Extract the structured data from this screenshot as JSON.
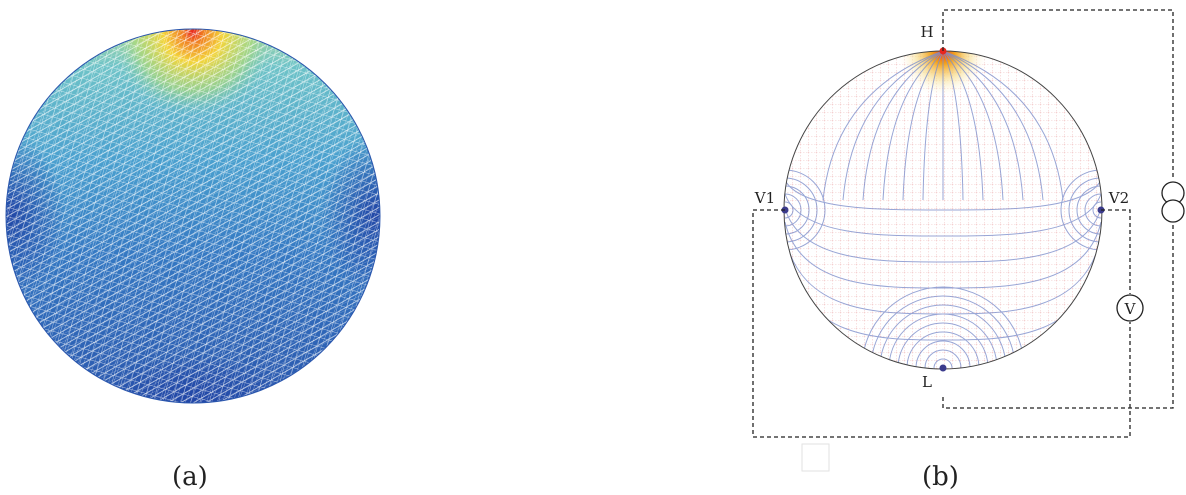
{
  "panels": [
    {
      "caption": "(a)",
      "colors": {
        "hot": "#e8261e",
        "warm": "#f3d43a",
        "mid": "#5fb6c9",
        "cool": "#2f5fb8",
        "mesh": "#ffffff"
      }
    },
    {
      "caption": "(b)",
      "labels": {
        "top_electrode": "H",
        "bottom_electrode": "L",
        "left_electrode": "V1",
        "right_electrode": "V2",
        "voltmeter": "V"
      },
      "colors": {
        "current_lines": "#e07878",
        "equipotentials": "#7f90cc",
        "hot": "#f2a11c",
        "electrode_dot": "#3b3b8c",
        "wire": "#222222"
      }
    }
  ]
}
